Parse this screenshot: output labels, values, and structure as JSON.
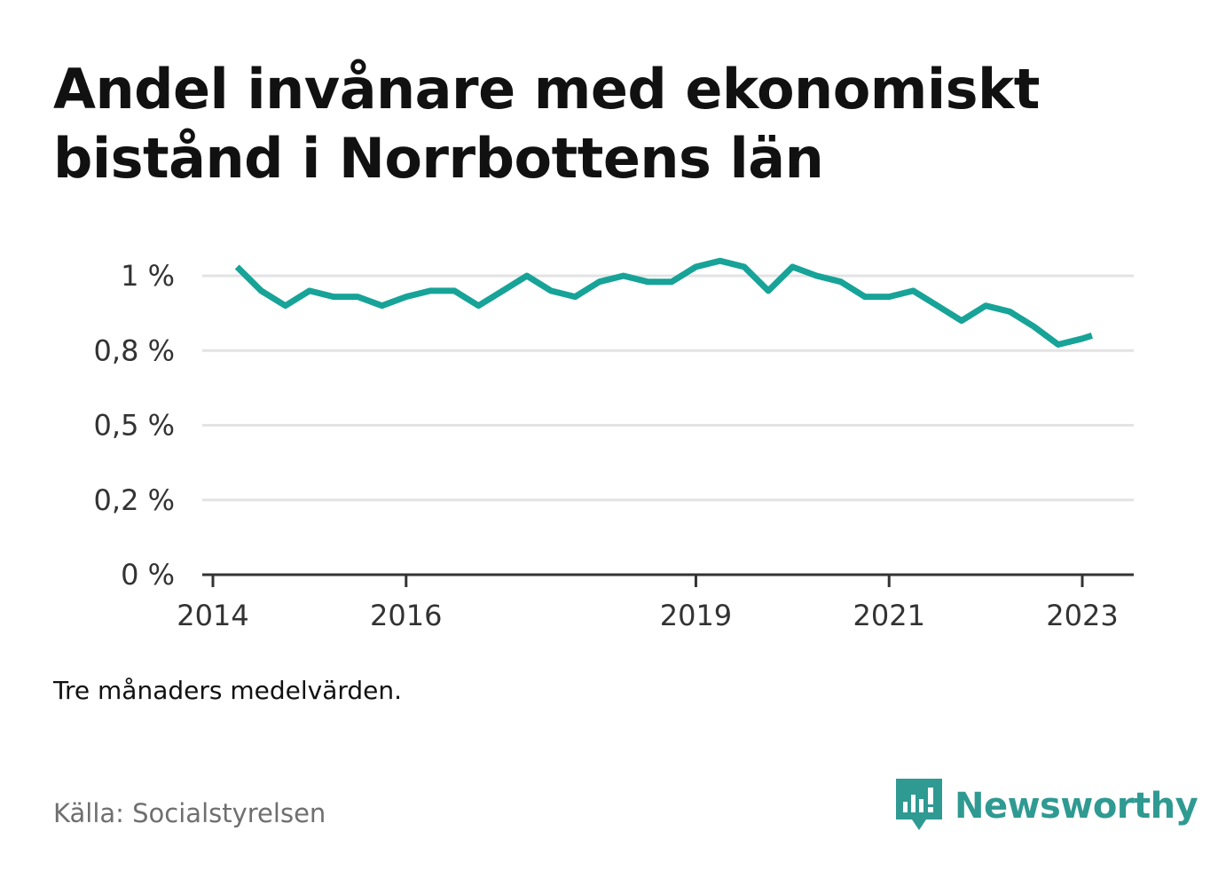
{
  "title": "Andel invånare med ekonomiskt bistånd i Norrbottens län",
  "note": "Tre månaders medelvärden.",
  "source": "Källa: Socialstyrelsen",
  "brand": {
    "name": "Newsworthy",
    "icon": "newsworthy-bar-chart-icon",
    "color": "#2f9a92"
  },
  "chart_data": {
    "type": "line",
    "title": "Andel invånare med ekonomiskt bistånd i Norrbottens län",
    "xlabel": "",
    "ylabel": "",
    "x": [
      2014.25,
      2014.5,
      2014.75,
      2015.0,
      2015.25,
      2015.5,
      2015.75,
      2016.0,
      2016.25,
      2016.5,
      2016.75,
      2017.0,
      2017.25,
      2017.5,
      2017.75,
      2018.0,
      2018.25,
      2018.5,
      2018.75,
      2019.0,
      2019.25,
      2019.5,
      2019.75,
      2020.0,
      2020.25,
      2020.5,
      2020.75,
      2021.0,
      2021.25,
      2021.5,
      2021.75,
      2022.0,
      2022.25,
      2022.5,
      2022.75,
      2023.0,
      2023.1
    ],
    "series": [
      {
        "values": [
          1.03,
          0.95,
          0.9,
          0.95,
          0.93,
          0.93,
          0.9,
          0.93,
          0.95,
          0.95,
          0.9,
          0.95,
          1.0,
          0.95,
          0.93,
          0.98,
          1.0,
          0.98,
          0.98,
          1.03,
          1.05,
          1.03,
          0.95,
          1.03,
          1.0,
          0.98,
          0.93,
          0.93,
          0.95,
          0.9,
          0.85,
          0.9,
          0.88,
          0.83,
          0.77,
          0.79,
          0.8
        ],
        "color": "#17a398"
      }
    ],
    "y_ticks": [
      {
        "value": 0,
        "label": "0 %"
      },
      {
        "value": 0.25,
        "label": "0,2 %"
      },
      {
        "value": 0.5,
        "label": "0,5 %"
      },
      {
        "value": 0.75,
        "label": "0,8 %"
      },
      {
        "value": 1.0,
        "label": "1 %"
      }
    ],
    "x_ticks": [
      {
        "value": 2014,
        "label": "2014"
      },
      {
        "value": 2016,
        "label": "2016"
      },
      {
        "value": 2019,
        "label": "2019"
      },
      {
        "value": 2021,
        "label": "2021"
      },
      {
        "value": 2023,
        "label": "2023"
      }
    ],
    "xlim": [
      2013.9,
      2023.5
    ],
    "ylim": [
      0,
      1.05
    ],
    "grid": true,
    "colors": {
      "line": "#17a398",
      "grid": "#e3e3e3",
      "axis": "#333333"
    }
  }
}
